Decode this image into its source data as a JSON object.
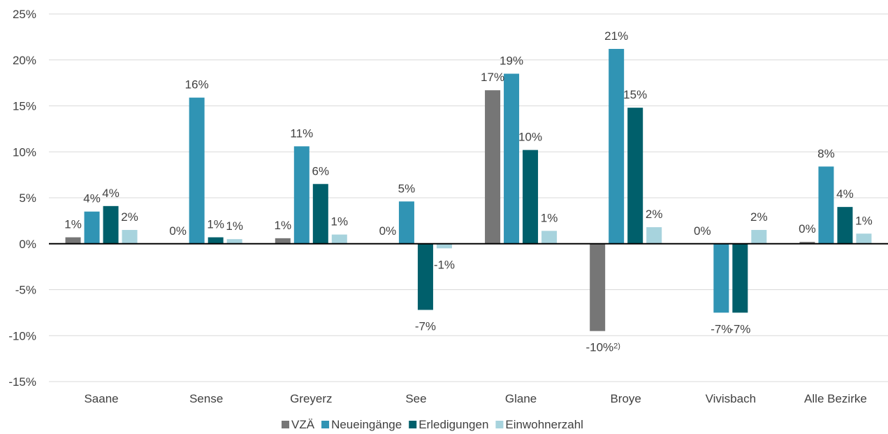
{
  "chart_data": {
    "type": "bar",
    "title": "",
    "xlabel": "",
    "ylabel": "",
    "ylim": [
      -15,
      25
    ],
    "yticks": [
      25,
      20,
      15,
      10,
      5,
      0,
      -5,
      -10,
      -15
    ],
    "ytick_labels": [
      "25%",
      "20%",
      "15%",
      "10%",
      "5%",
      "0%",
      "-5%",
      "-10%",
      "-15%"
    ],
    "grid": true,
    "legend_position": "bottom",
    "categories": [
      "Saane",
      "Sense",
      "Greyerz",
      "See",
      "Glane",
      "Broye",
      "Vivisbach",
      "Alle Bezirke"
    ],
    "series": [
      {
        "name": "VZÄ",
        "color": "#767676",
        "values": [
          0.7,
          0.0,
          0.6,
          0.0,
          16.7,
          -9.5,
          0.0,
          0.2
        ],
        "labels": [
          "1%",
          "0%",
          "1%",
          "0%",
          "17%",
          "-10%",
          "0%",
          "0%"
        ],
        "footnotes": [
          "",
          "",
          "",
          "",
          "",
          "2)",
          "",
          ""
        ]
      },
      {
        "name": "Neueingänge",
        "color": "#3094b4",
        "values": [
          3.5,
          15.9,
          10.6,
          4.6,
          18.5,
          21.2,
          -7.5,
          8.4
        ],
        "labels": [
          "4%",
          "16%",
          "11%",
          "5%",
          "19%",
          "21%",
          "-7%",
          "8%"
        ],
        "footnotes": [
          "",
          "",
          "",
          "",
          "",
          "",
          "",
          ""
        ]
      },
      {
        "name": "Erledigungen",
        "color": "#005f6b",
        "values": [
          4.1,
          0.7,
          6.5,
          -7.2,
          10.2,
          14.8,
          -7.5,
          4.0
        ],
        "labels": [
          "4%",
          "1%",
          "6%",
          "-7%",
          "10%",
          "15%",
          "-7%",
          "4%"
        ],
        "footnotes": [
          "",
          "",
          "",
          "",
          "",
          "",
          "",
          ""
        ]
      },
      {
        "name": "Einwohnerzahl",
        "color": "#a7d3dd",
        "values": [
          1.5,
          0.5,
          1.0,
          -0.5,
          1.4,
          1.8,
          1.5,
          1.1
        ],
        "labels": [
          "2%",
          "1%",
          "1%",
          "-1%",
          "1%",
          "2%",
          "2%",
          "1%"
        ],
        "footnotes": [
          "",
          "",
          "",
          "",
          "",
          "",
          "",
          ""
        ]
      }
    ]
  }
}
